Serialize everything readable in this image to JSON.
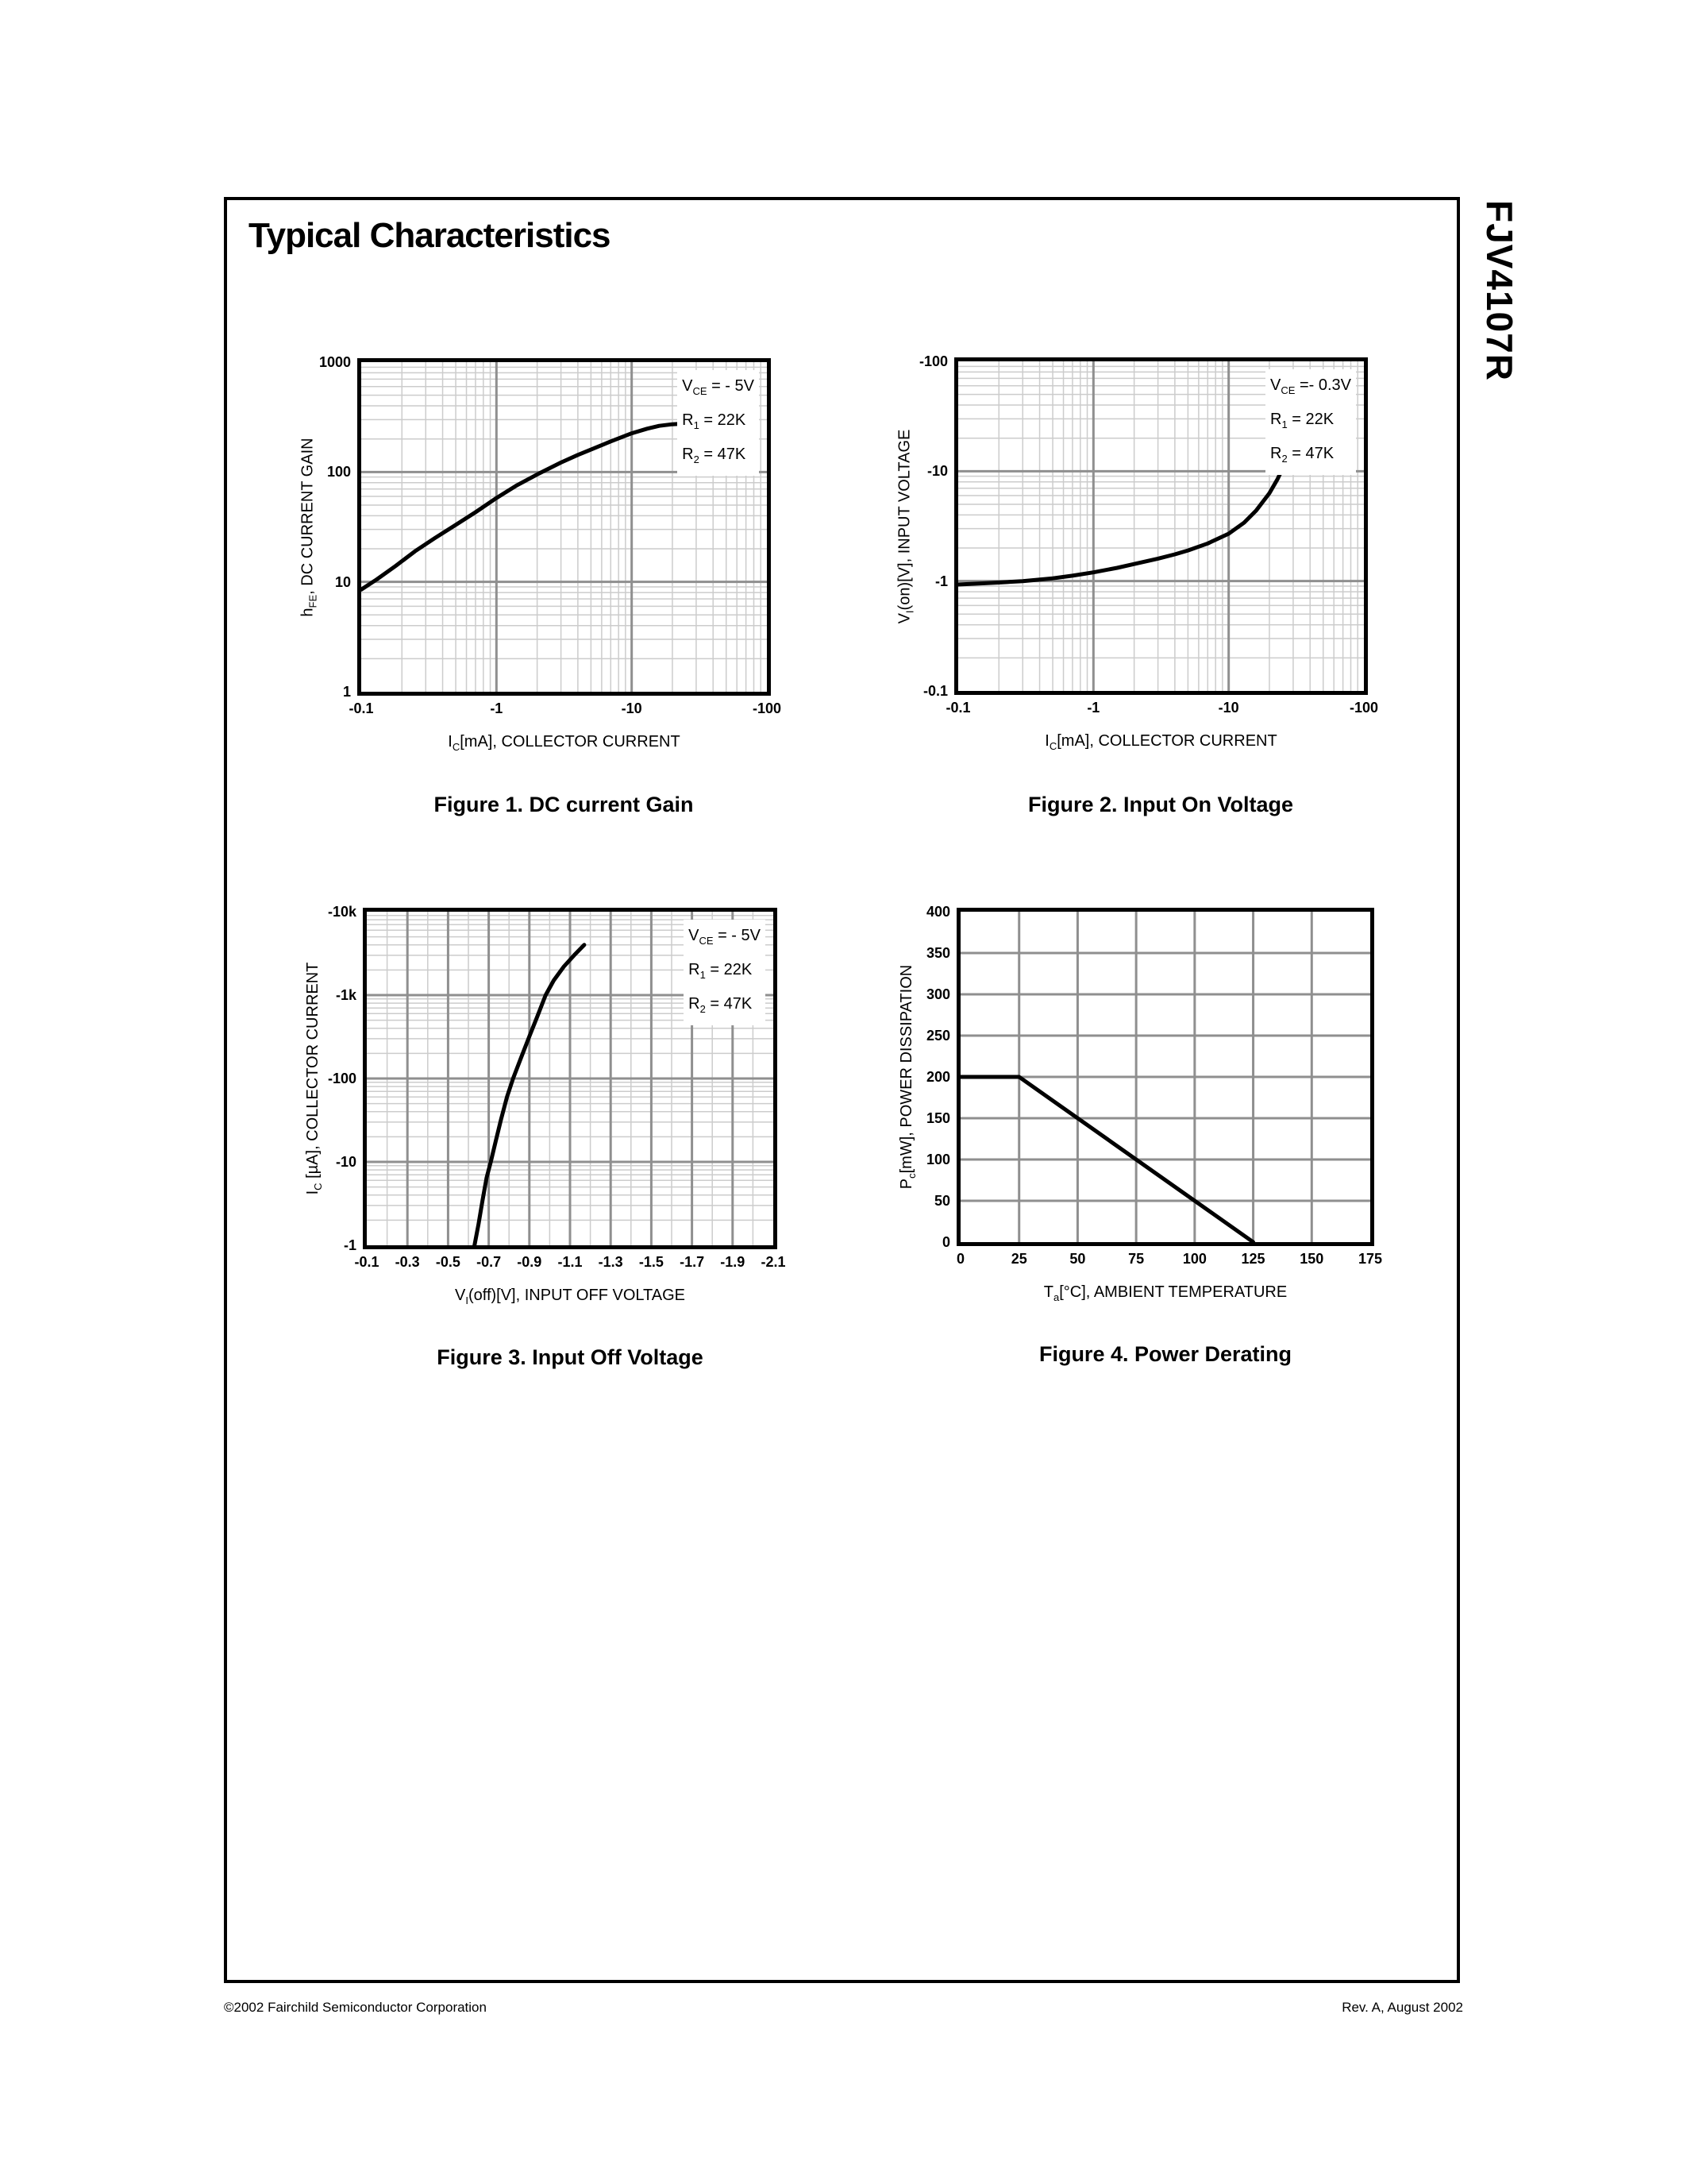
{
  "page": {
    "title": "Typical Characteristics",
    "part_number": "FJV4107R",
    "footer_left": "©2002 Fairchild Semiconductor Corporation",
    "footer_right": "Rev. A, August 2002"
  },
  "colors": {
    "curve": "#000000",
    "grid_minor": "#cccccc",
    "grid_major": "#8f8f8f",
    "frame": "#000000"
  },
  "chart_data": [
    {
      "id": "fig1",
      "type": "line",
      "title": "Figure 1. DC current Gain",
      "xlabel": {
        "base": "I",
        "sub": "C",
        "rest": "[mA], COLLECTOR CURRENT"
      },
      "ylabel": {
        "base": "h",
        "sub": "FE",
        "rest": ", DC CURRENT GAIN"
      },
      "legend": [
        {
          "base": "V",
          "sub": "CE",
          "rest": " = - 5V"
        },
        {
          "base": "R",
          "sub": "1",
          "rest": " = 22K"
        },
        {
          "base": "R",
          "sub": "2",
          "rest": " = 47K"
        }
      ],
      "x_axis": {
        "scale": "log",
        "min": 0.1,
        "max": 100,
        "ticks": [
          0.1,
          1,
          10,
          100
        ],
        "tick_labels": [
          "-0.1",
          "-1",
          "-10",
          "-100"
        ]
      },
      "y_axis": {
        "scale": "log",
        "min": 1,
        "max": 1000,
        "ticks": [
          1,
          10,
          100,
          1000
        ],
        "tick_labels": [
          "1",
          "10",
          "100",
          "1000"
        ]
      },
      "series": [
        {
          "name": "hFE vs IC (magnitudes, axes shown negative)",
          "points": [
            [
              0.1,
              8.5
            ],
            [
              0.13,
              10.5
            ],
            [
              0.18,
              14
            ],
            [
              0.25,
              19
            ],
            [
              0.35,
              25
            ],
            [
              0.5,
              33
            ],
            [
              0.7,
              43
            ],
            [
              1,
              58
            ],
            [
              1.4,
              75
            ],
            [
              2,
              95
            ],
            [
              3,
              122
            ],
            [
              4,
              143
            ],
            [
              5,
              160
            ],
            [
              7,
              190
            ],
            [
              10,
              225
            ],
            [
              13,
              248
            ],
            [
              16,
              263
            ],
            [
              20,
              272
            ],
            [
              25,
              276
            ],
            [
              30,
              271
            ],
            [
              40,
              257
            ],
            [
              50,
              242
            ],
            [
              60,
              228
            ]
          ]
        }
      ]
    },
    {
      "id": "fig2",
      "type": "line",
      "title": "Figure 2. Input On Voltage",
      "xlabel": {
        "base": "I",
        "sub": "C",
        "rest": "[mA], COLLECTOR CURRENT"
      },
      "ylabel": {
        "base": "V",
        "sub": "I",
        "rest": "(on)[V], INPUT VOLTAGE"
      },
      "legend": [
        {
          "base": "V",
          "sub": "CE",
          "rest": " =- 0.3V"
        },
        {
          "base": "R",
          "sub": "1",
          "rest": " = 22K"
        },
        {
          "base": "R",
          "sub": "2",
          "rest": " = 47K"
        }
      ],
      "x_axis": {
        "scale": "log",
        "min": 0.1,
        "max": 100,
        "ticks": [
          0.1,
          1,
          10,
          100
        ],
        "tick_labels": [
          "-0.1",
          "-1",
          "-10",
          "-100"
        ]
      },
      "y_axis": {
        "scale": "log",
        "min": 0.1,
        "max": 100,
        "ticks": [
          0.1,
          1,
          10,
          100
        ],
        "tick_labels": [
          "-0.1",
          "-1",
          "-10",
          "-100"
        ]
      },
      "series": [
        {
          "name": "Vi(on) vs IC (magnitudes, axes shown negative)",
          "points": [
            [
              0.1,
              0.93
            ],
            [
              0.2,
              0.97
            ],
            [
              0.3,
              1.0
            ],
            [
              0.5,
              1.06
            ],
            [
              0.7,
              1.12
            ],
            [
              1,
              1.2
            ],
            [
              1.5,
              1.32
            ],
            [
              2,
              1.43
            ],
            [
              3,
              1.6
            ],
            [
              4,
              1.75
            ],
            [
              5,
              1.9
            ],
            [
              7,
              2.2
            ],
            [
              10,
              2.7
            ],
            [
              13,
              3.4
            ],
            [
              16,
              4.4
            ],
            [
              20,
              6.3
            ],
            [
              23,
              8.5
            ],
            [
              24.5,
              10
            ]
          ]
        }
      ]
    },
    {
      "id": "fig3",
      "type": "line",
      "title": "Figure 3. Input Off Voltage",
      "xlabel": {
        "base": "V",
        "sub": "I",
        "rest": "(off)[V], INPUT OFF VOLTAGE"
      },
      "ylabel": {
        "base": "I",
        "sub": "C",
        "rest": " [µA], COLLECTOR CURRENT"
      },
      "legend": [
        {
          "base": "V",
          "sub": "CE",
          "rest": " = - 5V"
        },
        {
          "base": "R",
          "sub": "1",
          "rest": " = 22K"
        },
        {
          "base": "R",
          "sub": "2",
          "rest": " = 47K"
        }
      ],
      "x_axis": {
        "scale": "linear",
        "min": 0.1,
        "max": 2.1,
        "minor_step": 0.1,
        "ticks": [
          0.1,
          0.3,
          0.5,
          0.7,
          0.9,
          1.1,
          1.3,
          1.5,
          1.7,
          1.9,
          2.1
        ],
        "tick_labels": [
          "-0.1",
          "-0.3",
          "-0.5",
          "-0.7",
          "-0.9",
          "-1.1",
          "-1.3",
          "-1.5",
          "-1.7",
          "-1.9",
          "-2.1"
        ]
      },
      "y_axis": {
        "scale": "log",
        "min": 1,
        "max": 10000,
        "ticks": [
          1,
          10,
          100,
          1000,
          10000
        ],
        "tick_labels": [
          "-1",
          "-10",
          "-100",
          "-1k",
          "-10k"
        ]
      },
      "series": [
        {
          "name": "IC vs Vi(off) (magnitudes, axes shown negative)",
          "points": [
            [
              0.63,
              1
            ],
            [
              0.65,
              1.8
            ],
            [
              0.67,
              3.5
            ],
            [
              0.69,
              6.5
            ],
            [
              0.71,
              10
            ],
            [
              0.735,
              18
            ],
            [
              0.76,
              32
            ],
            [
              0.79,
              60
            ],
            [
              0.82,
              100
            ],
            [
              0.86,
              180
            ],
            [
              0.9,
              320
            ],
            [
              0.94,
              560
            ],
            [
              0.98,
              1000
            ],
            [
              1.02,
              1500
            ],
            [
              1.07,
              2200
            ],
            [
              1.12,
              3000
            ],
            [
              1.17,
              4000
            ]
          ]
        }
      ]
    },
    {
      "id": "fig4",
      "type": "line",
      "title": "Figure 4. Power Derating",
      "xlabel": {
        "base": "T",
        "sub": "a",
        "rest": "[°C], AMBIENT TEMPERATURE"
      },
      "ylabel": {
        "base": "P",
        "sub": "c",
        "rest": "[mW], POWER DISSIPATION"
      },
      "legend": [],
      "x_axis": {
        "scale": "linear",
        "min": 0,
        "max": 175,
        "ticks": [
          0,
          25,
          50,
          75,
          100,
          125,
          150,
          175
        ],
        "tick_labels": [
          "0",
          "25",
          "50",
          "75",
          "100",
          "125",
          "150",
          "175"
        ]
      },
      "y_axis": {
        "scale": "linear",
        "min": 0,
        "max": 400,
        "ticks": [
          0,
          50,
          100,
          150,
          200,
          250,
          300,
          350,
          400
        ],
        "tick_labels": [
          "0",
          "50",
          "100",
          "150",
          "200",
          "250",
          "300",
          "350",
          "400"
        ]
      },
      "series": [
        {
          "name": "Pd vs Ta",
          "points": [
            [
              0,
              200
            ],
            [
              25,
              200
            ],
            [
              125,
              0
            ]
          ]
        }
      ]
    }
  ]
}
